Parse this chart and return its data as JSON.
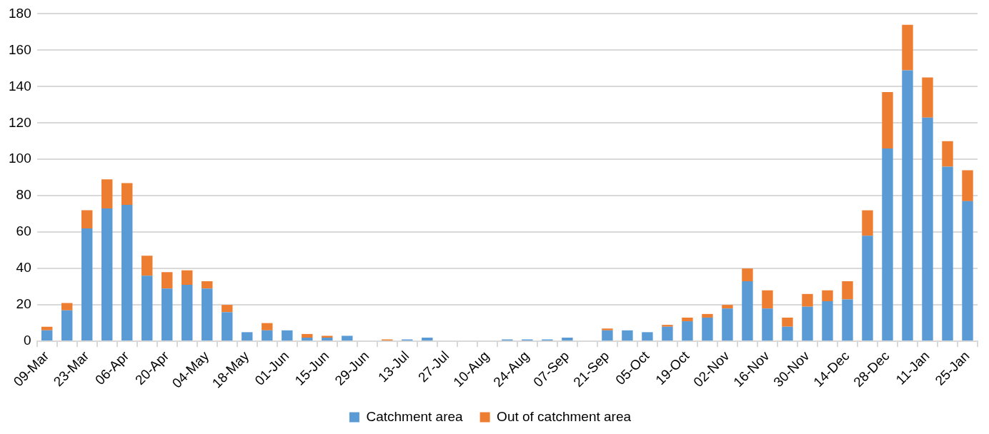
{
  "chart_data": {
    "type": "bar",
    "stacked": true,
    "categories": [
      "09-Mar",
      null,
      "23-Mar",
      null,
      "06-Apr",
      null,
      "20-Apr",
      null,
      "04-May",
      null,
      "18-May",
      null,
      "01-Jun",
      null,
      "15-Jun",
      null,
      "29-Jun",
      null,
      "13-Jul",
      null,
      "27-Jul",
      null,
      "10-Aug",
      null,
      "24-Aug",
      null,
      "07-Sep",
      null,
      "21-Sep",
      null,
      "05-Oct",
      null,
      "19-Oct",
      null,
      "02-Nov",
      null,
      "16-Nov",
      null,
      "30-Nov",
      null,
      "14-Dec",
      null,
      "28-Dec",
      null,
      "11-Jan",
      null,
      "25-Jan"
    ],
    "series": [
      {
        "name": "Catchment area",
        "color": "#5b9bd5",
        "values": [
          6,
          17,
          62,
          73,
          75,
          36,
          29,
          31,
          29,
          16,
          5,
          6,
          6,
          2,
          2,
          3,
          0,
          0,
          1,
          2,
          0,
          0,
          0,
          1,
          1,
          1,
          2,
          0,
          6,
          6,
          5,
          8,
          11,
          13,
          18,
          33,
          18,
          8,
          19,
          22,
          23,
          58,
          106,
          149,
          123,
          96,
          77
        ]
      },
      {
        "name": "Out of catchment area",
        "color": "#ed7d31",
        "values": [
          2,
          4,
          10,
          16,
          12,
          11,
          9,
          8,
          4,
          4,
          0,
          4,
          0,
          2,
          1,
          0,
          0,
          1,
          0,
          0,
          0,
          0,
          0,
          0,
          0,
          0,
          0,
          0,
          1,
          0,
          0,
          1,
          2,
          2,
          2,
          7,
          10,
          5,
          7,
          6,
          10,
          14,
          31,
          25,
          22,
          14,
          17
        ]
      }
    ],
    "ylim": [
      0,
      180
    ],
    "yticks": [
      0,
      20,
      40,
      60,
      80,
      100,
      120,
      140,
      160,
      180
    ],
    "grid": "y",
    "legend": "bottom"
  }
}
